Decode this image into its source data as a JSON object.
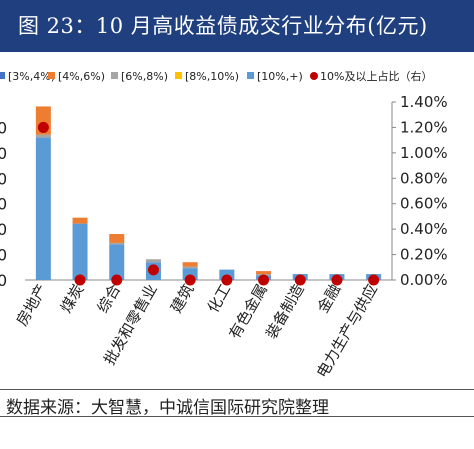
{
  "title": "图 23：10 月高收益债成交行业分布(亿元)",
  "source": "数据来源：大智慧，中诚信国际研究院整理",
  "chart_data": {
    "type": "bar",
    "stacked": true,
    "categories": [
      "房地产",
      "煤炭",
      "综合",
      "批发和零售业",
      "建筑",
      "化工",
      "有色金属",
      "装备制造",
      "金融",
      "电力生产与供应"
    ],
    "series": [
      {
        "name": "[10%,+)",
        "color": "#5b9bd5",
        "values": [
          4.8,
          1.9,
          1.2,
          0.6,
          0.4,
          0.35,
          0.15,
          0.2,
          0.2,
          0.2
        ]
      },
      {
        "name": "[8%,10%)",
        "color": "#ffc000",
        "values": [
          0,
          0,
          0,
          0,
          0,
          0,
          0,
          0,
          0,
          0
        ]
      },
      {
        "name": "[6%,8%)",
        "color": "#a5a5a5",
        "values": [
          0.1,
          0,
          0.05,
          0.1,
          0.05,
          0,
          0.05,
          0,
          0,
          0
        ]
      },
      {
        "name": "[4%,6%)",
        "color": "#ed7d31",
        "values": [
          0.95,
          0.2,
          0.3,
          0,
          0.15,
          0,
          0.1,
          0,
          0,
          0
        ]
      },
      {
        "name": "[3%,4%)",
        "color": "#4472c4",
        "values": [
          0,
          0,
          0,
          0,
          0,
          0,
          0,
          0,
          0,
          0
        ]
      }
    ],
    "dots": {
      "name": "10%及以上占比（右）",
      "color": "#c00000",
      "values": [
        0.012,
        0,
        0,
        0.0008,
        0,
        0,
        0,
        0,
        0,
        0
      ]
    },
    "ylim_left": [
      0,
      6
    ],
    "ylim_right": [
      0,
      0.014
    ],
    "right_ticks": [
      "0.00%",
      "0.20%",
      "0.40%",
      "0.60%",
      "0.80%",
      "1.00%",
      "1.20%",
      "1.40%"
    ],
    "left_ticks": [
      "0",
      "0",
      "0",
      "0",
      "0",
      "0",
      "0"
    ],
    "legend": [
      "[3%,4%)",
      "[4%,6%)",
      "[6%,8%)",
      "[8%,10%)",
      "[10%,+)",
      "10%及以上占比（右）"
    ],
    "legend_position": "top"
  }
}
